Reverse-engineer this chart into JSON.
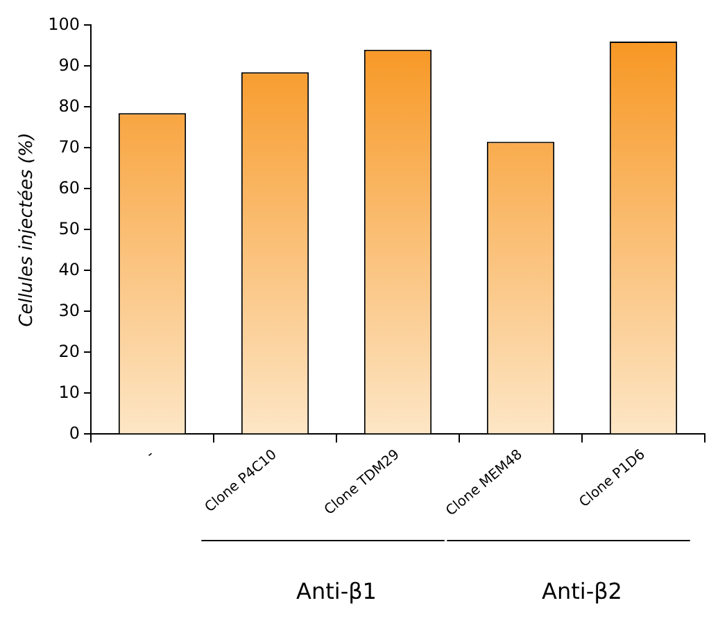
{
  "chart_data": {
    "type": "bar",
    "ylabel": "Cellules injectées (%)",
    "categories": [
      "-",
      "Clone P4C10",
      "Clone TDM29",
      "Clone MEM48",
      "Clone P1D6"
    ],
    "values": [
      78.5,
      88.5,
      94,
      71.5,
      96
    ],
    "color": "#f7941d",
    "ylim": [
      0,
      100
    ],
    "yticks": [
      0,
      10,
      20,
      30,
      40,
      50,
      60,
      70,
      80,
      90,
      100
    ],
    "grid": false,
    "legend": false,
    "annotations": [
      "Anti-β1",
      "Anti-β2"
    ]
  }
}
